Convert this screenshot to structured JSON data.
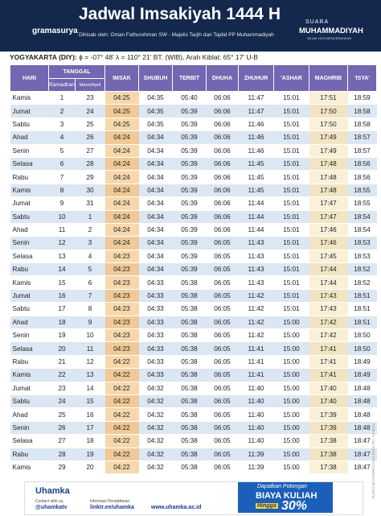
{
  "header": {
    "title": "Jadwal Imsakiyah 1444 H",
    "subtitle": "Dihisab oleh: Oman Fathurohman SW - Majelis Tarjih dan Tajdid PP Muhammadiyah",
    "publisher_left": "gramasurya",
    "publisher_right_top": "SUARA",
    "publisher_right": "MUHAMMADIYAH",
    "publisher_right_tagline": "SEJAK 1915 MENCERAHKAN"
  },
  "location": {
    "city": "YOGYAKARTA (DIY):",
    "coords": "ϕ = -07° 48'  λ = 110° 21'  BT. (WIB), Arah Kiblat: 65° 17'  U-B"
  },
  "table": {
    "header": {
      "day": "HARI",
      "date": "TANGGAL",
      "ramadhan": "Ramadhan",
      "gregorian": "Maret/April",
      "times": [
        "IMSAK",
        "SHUBUH",
        "TERBIT",
        "DHUHA",
        "ZHUHUR",
        "'ASHAR",
        "MAGHRIB",
        "'ISYA'"
      ]
    },
    "rows": [
      [
        "Kamis",
        1,
        23,
        "04:25",
        "04:35",
        "05:40",
        "06:06",
        "11:47",
        "15:01",
        "17:51",
        "18:59"
      ],
      [
        "Jumat",
        2,
        24,
        "04:25",
        "04:35",
        "05:39",
        "06:06",
        "11:47",
        "15:01",
        "17:50",
        "18:58"
      ],
      [
        "Sabtu",
        3,
        25,
        "04:25",
        "04:35",
        "05:39",
        "06:06",
        "11:46",
        "15:01",
        "17:50",
        "18:58"
      ],
      [
        "Ahad",
        4,
        26,
        "04:24",
        "04:34",
        "05:39",
        "06:06",
        "11:46",
        "15:01",
        "17:49",
        "18:57"
      ],
      [
        "Senin",
        5,
        27,
        "04:24",
        "04:34",
        "05:39",
        "06:06",
        "11:46",
        "15:01",
        "17:49",
        "18:57"
      ],
      [
        "Selasa",
        6,
        28,
        "04:24",
        "04:34",
        "05:39",
        "06:06",
        "11:45",
        "15:01",
        "17:48",
        "18:56"
      ],
      [
        "Rabu",
        7,
        29,
        "04:24",
        "04:34",
        "05:39",
        "06:06",
        "11:45",
        "15:01",
        "17:48",
        "18:56"
      ],
      [
        "Kamis",
        8,
        30,
        "04:24",
        "04:34",
        "05:39",
        "06:06",
        "11:45",
        "15:01",
        "17:48",
        "18:55"
      ],
      [
        "Jumat",
        9,
        31,
        "04:24",
        "04:34",
        "05:39",
        "06:06",
        "11:44",
        "15:01",
        "17:47",
        "18:55"
      ],
      [
        "Sabtu",
        10,
        1,
        "04:24",
        "04:34",
        "05:39",
        "06:06",
        "11:44",
        "15:01",
        "17:47",
        "18:54"
      ],
      [
        "Ahad",
        11,
        2,
        "04:24",
        "04:34",
        "05:39",
        "06:06",
        "11:44",
        "15:01",
        "17:46",
        "18:54"
      ],
      [
        "Senin",
        12,
        3,
        "04:24",
        "04:34",
        "05:39",
        "06:05",
        "11:43",
        "15:01",
        "17:46",
        "18:53"
      ],
      [
        "Selasa",
        13,
        4,
        "04:23",
        "04:34",
        "05:39",
        "06:05",
        "11:43",
        "15:01",
        "17:45",
        "18:53"
      ],
      [
        "Rabu",
        14,
        5,
        "04:23",
        "04:34",
        "05:39",
        "06:05",
        "11:43",
        "15:01",
        "17:44",
        "18:52"
      ],
      [
        "Kamis",
        15,
        6,
        "04:23",
        "04:33",
        "05:38",
        "06:05",
        "11:43",
        "15:01",
        "17:44",
        "18:52"
      ],
      [
        "Jumat",
        16,
        7,
        "04:23",
        "04:33",
        "05:38",
        "06:05",
        "11:42",
        "15:01",
        "17:43",
        "18:51"
      ],
      [
        "Sabtu",
        17,
        8,
        "04:23",
        "04:33",
        "05:38",
        "06:05",
        "11:42",
        "15:01",
        "17:43",
        "18:51"
      ],
      [
        "Ahad",
        18,
        9,
        "04:23",
        "04:33",
        "05:38",
        "06:05",
        "11:42",
        "15:00",
        "17:42",
        "18:51"
      ],
      [
        "Senin",
        19,
        10,
        "04:23",
        "04:33",
        "05:38",
        "06:05",
        "11:42",
        "15:00",
        "17:42",
        "18:50"
      ],
      [
        "Selasa",
        20,
        11,
        "04:23",
        "04:33",
        "05:38",
        "06:05",
        "11:41",
        "15:00",
        "17:41",
        "18:50"
      ],
      [
        "Rabu",
        21,
        12,
        "04:22",
        "04:33",
        "05:38",
        "06:05",
        "11:41",
        "15:00",
        "17:41",
        "18:49"
      ],
      [
        "Kamis",
        22,
        13,
        "04:22",
        "04:33",
        "05:38",
        "06:05",
        "11:41",
        "15:00",
        "17:41",
        "18:49"
      ],
      [
        "Jumat",
        23,
        14,
        "04:22",
        "04:32",
        "05:38",
        "06:05",
        "11:40",
        "15:00",
        "17:40",
        "18:48"
      ],
      [
        "Sabtu",
        24,
        15,
        "04:22",
        "04:32",
        "05:38",
        "06:05",
        "11:40",
        "15:00",
        "17:40",
        "18:48"
      ],
      [
        "Ahad",
        25,
        16,
        "04:22",
        "04:32",
        "05:38",
        "06:05",
        "11:40",
        "15:00",
        "17:39",
        "18:48"
      ],
      [
        "Senin",
        26,
        17,
        "04:22",
        "04:32",
        "05:38",
        "06:05",
        "11:40",
        "15:00",
        "17:39",
        "18:48"
      ],
      [
        "Selasa",
        27,
        18,
        "04:22",
        "04:32",
        "05:38",
        "06:05",
        "11:40",
        "15:00",
        "17:38",
        "18:47"
      ],
      [
        "Rabu",
        28,
        19,
        "04:22",
        "04:32",
        "05:38",
        "06:05",
        "11:39",
        "15:00",
        "17:38",
        "18:47"
      ],
      [
        "Kamis",
        29,
        20,
        "04:22",
        "04:32",
        "05:38",
        "06:05",
        "11:39",
        "15:00",
        "17:38",
        "18:47"
      ]
    ]
  },
  "side_note": "SUARA MUHAMMADIYAH EDISI NO. 04-2023",
  "banner": {
    "brand": "Uhamka",
    "contact_label": "Contact with us,",
    "contact": "@uhamkatv",
    "info_label": "Informasi Pendaftaran",
    "info": "linktr.ee/uhamka",
    "website": "www.uhamka.ac.id",
    "promo_top": "Dapatkan Potongan",
    "promo_main": "BIAYA KULIAH",
    "promo_until": "Hingga",
    "promo_value": "30%"
  }
}
